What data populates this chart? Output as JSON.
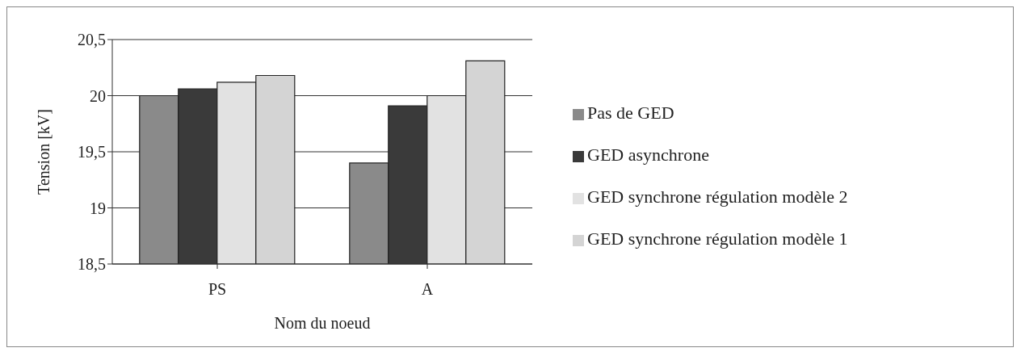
{
  "chart_data": {
    "type": "bar",
    "xlabel": "Nom du noeud",
    "ylabel": "Tension [kV]",
    "categories": [
      "PS",
      "A"
    ],
    "series": [
      {
        "name": "Pas de GED",
        "color": "#8a8a8a",
        "values": [
          20.0,
          19.4
        ]
      },
      {
        "name": "GED asynchrone",
        "color": "#3a3a3a",
        "values": [
          20.06,
          19.91
        ]
      },
      {
        "name": "GED synchrone régulation modèle 2",
        "color": "#e2e2e2",
        "values": [
          20.12,
          20.0
        ]
      },
      {
        "name": "GED synchrone régulation modèle 1",
        "color": "#d4d4d4",
        "values": [
          20.18,
          20.31
        ]
      }
    ],
    "ylim": [
      18.5,
      20.5
    ],
    "yticks": [
      {
        "value": 18.5,
        "label": "18,5"
      },
      {
        "value": 19,
        "label": "19"
      },
      {
        "value": 19.5,
        "label": "19,5"
      },
      {
        "value": 20,
        "label": "20"
      },
      {
        "value": 20.5,
        "label": "20,5"
      }
    ],
    "grid": "y",
    "legend": "right"
  }
}
